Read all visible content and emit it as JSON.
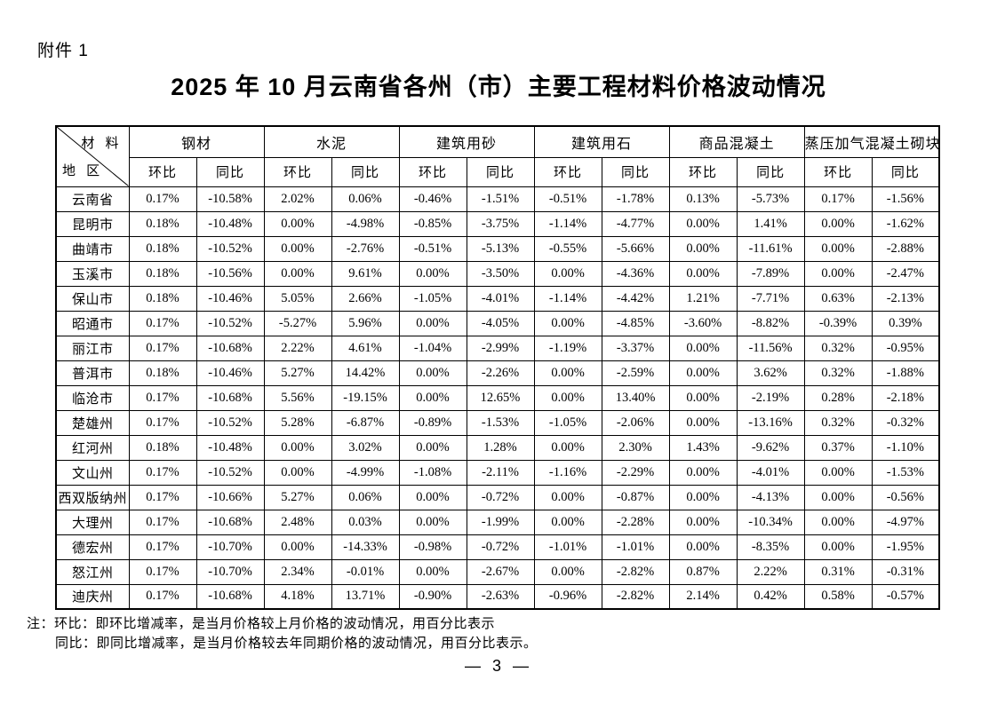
{
  "page": {
    "attachment_label": "附件 1",
    "title": "2025 年 10 月云南省各州（市）主要工程材料价格波动情况",
    "note_line1": "注：环比：即环比增减率，是当月价格较上月价格的波动情况，用百分比表示",
    "note_line2": "同比：即同比增减率，是当月价格较去年同期价格的波动情况，用百分比表示。",
    "page_number": "— 3 —"
  },
  "table": {
    "corner": {
      "top_right": "材 料",
      "bottom_left": "地 区"
    },
    "materials": [
      "钢材",
      "水泥",
      "建筑用砂",
      "建筑用石",
      "商品混凝土",
      "蒸压加气混凝土砌块"
    ],
    "sub_headers": [
      "环比",
      "同比"
    ],
    "rows": [
      {
        "region": "云南省",
        "values": [
          "0.17%",
          "-10.58%",
          "2.02%",
          "0.06%",
          "-0.46%",
          "-1.51%",
          "-0.51%",
          "-1.78%",
          "0.13%",
          "-5.73%",
          "0.17%",
          "-1.56%"
        ]
      },
      {
        "region": "昆明市",
        "values": [
          "0.18%",
          "-10.48%",
          "0.00%",
          "-4.98%",
          "-0.85%",
          "-3.75%",
          "-1.14%",
          "-4.77%",
          "0.00%",
          "1.41%",
          "0.00%",
          "-1.62%"
        ]
      },
      {
        "region": "曲靖市",
        "values": [
          "0.18%",
          "-10.52%",
          "0.00%",
          "-2.76%",
          "-0.51%",
          "-5.13%",
          "-0.55%",
          "-5.66%",
          "0.00%",
          "-11.61%",
          "0.00%",
          "-2.88%"
        ]
      },
      {
        "region": "玉溪市",
        "values": [
          "0.18%",
          "-10.56%",
          "0.00%",
          "9.61%",
          "0.00%",
          "-3.50%",
          "0.00%",
          "-4.36%",
          "0.00%",
          "-7.89%",
          "0.00%",
          "-2.47%"
        ]
      },
      {
        "region": "保山市",
        "values": [
          "0.18%",
          "-10.46%",
          "5.05%",
          "2.66%",
          "-1.05%",
          "-4.01%",
          "-1.14%",
          "-4.42%",
          "1.21%",
          "-7.71%",
          "0.63%",
          "-2.13%"
        ]
      },
      {
        "region": "昭通市",
        "values": [
          "0.17%",
          "-10.52%",
          "-5.27%",
          "5.96%",
          "0.00%",
          "-4.05%",
          "0.00%",
          "-4.85%",
          "-3.60%",
          "-8.82%",
          "-0.39%",
          "0.39%"
        ]
      },
      {
        "region": "丽江市",
        "values": [
          "0.17%",
          "-10.68%",
          "2.22%",
          "4.61%",
          "-1.04%",
          "-2.99%",
          "-1.19%",
          "-3.37%",
          "0.00%",
          "-11.56%",
          "0.32%",
          "-0.95%"
        ]
      },
      {
        "region": "普洱市",
        "values": [
          "0.18%",
          "-10.46%",
          "5.27%",
          "14.42%",
          "0.00%",
          "-2.26%",
          "0.00%",
          "-2.59%",
          "0.00%",
          "3.62%",
          "0.32%",
          "-1.88%"
        ]
      },
      {
        "region": "临沧市",
        "values": [
          "0.17%",
          "-10.68%",
          "5.56%",
          "-19.15%",
          "0.00%",
          "12.65%",
          "0.00%",
          "13.40%",
          "0.00%",
          "-2.19%",
          "0.28%",
          "-2.18%"
        ]
      },
      {
        "region": "楚雄州",
        "values": [
          "0.17%",
          "-10.52%",
          "5.28%",
          "-6.87%",
          "-0.89%",
          "-1.53%",
          "-1.05%",
          "-2.06%",
          "0.00%",
          "-13.16%",
          "0.32%",
          "-0.32%"
        ]
      },
      {
        "region": "红河州",
        "values": [
          "0.18%",
          "-10.48%",
          "0.00%",
          "3.02%",
          "0.00%",
          "1.28%",
          "0.00%",
          "2.30%",
          "1.43%",
          "-9.62%",
          "0.37%",
          "-1.10%"
        ]
      },
      {
        "region": "文山州",
        "values": [
          "0.17%",
          "-10.52%",
          "0.00%",
          "-4.99%",
          "-1.08%",
          "-2.11%",
          "-1.16%",
          "-2.29%",
          "0.00%",
          "-4.01%",
          "0.00%",
          "-1.53%"
        ]
      },
      {
        "region": "西双版纳州",
        "values": [
          "0.17%",
          "-10.66%",
          "5.27%",
          "0.06%",
          "0.00%",
          "-0.72%",
          "0.00%",
          "-0.87%",
          "0.00%",
          "-4.13%",
          "0.00%",
          "-0.56%"
        ]
      },
      {
        "region": "大理州",
        "values": [
          "0.17%",
          "-10.68%",
          "2.48%",
          "0.03%",
          "0.00%",
          "-1.99%",
          "0.00%",
          "-2.28%",
          "0.00%",
          "-10.34%",
          "0.00%",
          "-4.97%"
        ]
      },
      {
        "region": "德宏州",
        "values": [
          "0.17%",
          "-10.70%",
          "0.00%",
          "-14.33%",
          "-0.98%",
          "-0.72%",
          "-1.01%",
          "-1.01%",
          "0.00%",
          "-8.35%",
          "0.00%",
          "-1.95%"
        ]
      },
      {
        "region": "怒江州",
        "values": [
          "0.17%",
          "-10.70%",
          "2.34%",
          "-0.01%",
          "0.00%",
          "-2.67%",
          "0.00%",
          "-2.82%",
          "0.87%",
          "2.22%",
          "0.31%",
          "-0.31%"
        ]
      },
      {
        "region": "迪庆州",
        "values": [
          "0.17%",
          "-10.68%",
          "4.18%",
          "13.71%",
          "-0.90%",
          "-2.63%",
          "-0.96%",
          "-2.82%",
          "2.14%",
          "0.42%",
          "0.58%",
          "-0.57%"
        ]
      }
    ]
  }
}
